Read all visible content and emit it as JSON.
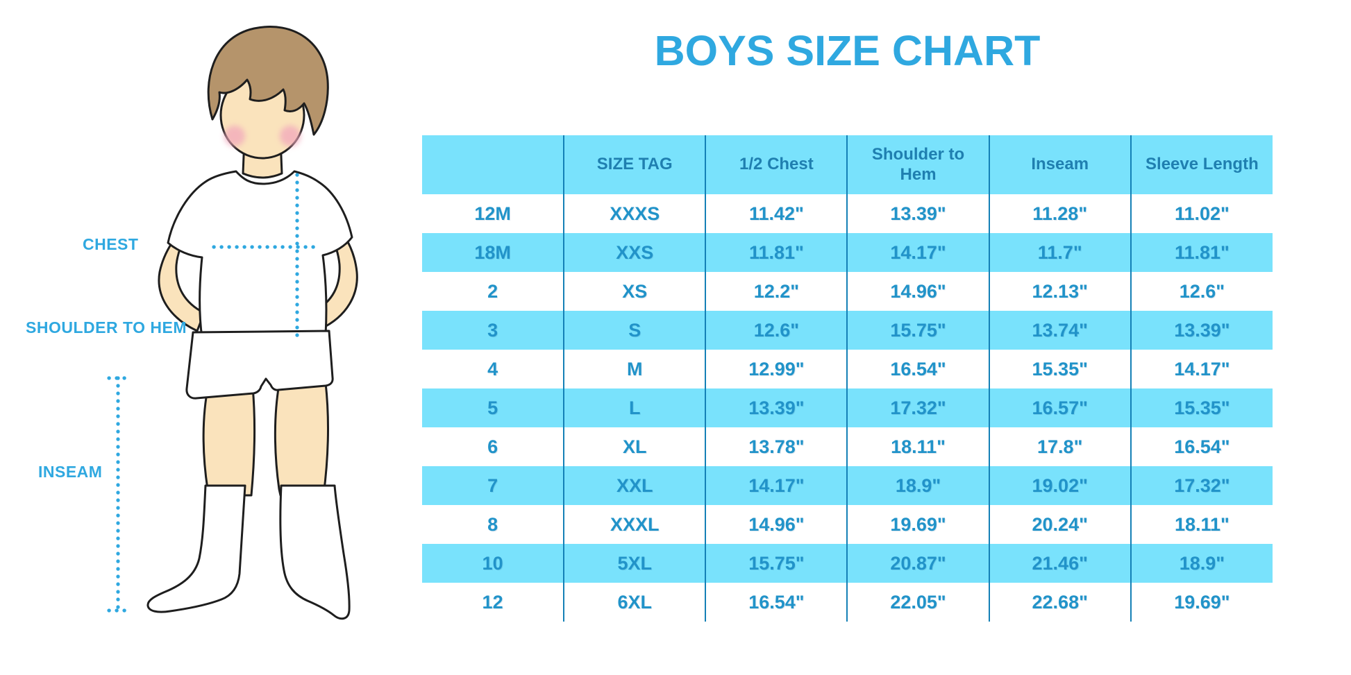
{
  "title": "BOYS SIZE CHART",
  "figure": {
    "chest_label": "CHEST",
    "shoulder_to_hem_label": "SHOULDER TO HEM",
    "inseam_label": "INSEAM"
  },
  "colors": {
    "accent": "#2FA8E0",
    "stripe": "#79E2FC",
    "divider": "#1480B6",
    "header_text": "#1F7FB0",
    "body_text": "#2193C9",
    "skin": "#FAE3BC",
    "hair": "#B5946B",
    "cheek": "#F2A8BC",
    "outline": "#1E1E1E"
  },
  "chart_data": {
    "type": "table",
    "title": "BOYS SIZE CHART",
    "columns": [
      "",
      "SIZE TAG",
      "1/2 Chest",
      "Shoulder to Hem",
      "Inseam",
      "Sleeve Length"
    ],
    "rows": [
      [
        "12M",
        "XXXS",
        "11.42\"",
        "13.39\"",
        "11.28\"",
        "11.02\""
      ],
      [
        "18M",
        "XXS",
        "11.81\"",
        "14.17\"",
        "11.7\"",
        "11.81\""
      ],
      [
        "2",
        "XS",
        "12.2\"",
        "14.96\"",
        "12.13\"",
        "12.6\""
      ],
      [
        "3",
        "S",
        "12.6\"",
        "15.75\"",
        "13.74\"",
        "13.39\""
      ],
      [
        "4",
        "M",
        "12.99\"",
        "16.54\"",
        "15.35\"",
        "14.17\""
      ],
      [
        "5",
        "L",
        "13.39\"",
        "17.32\"",
        "16.57\"",
        "15.35\""
      ],
      [
        "6",
        "XL",
        "13.78\"",
        "18.11\"",
        "17.8\"",
        "16.54\""
      ],
      [
        "7",
        "XXL",
        "14.17\"",
        "18.9\"",
        "19.02\"",
        "17.32\""
      ],
      [
        "8",
        "XXXL",
        "14.96\"",
        "19.69\"",
        "20.24\"",
        "18.11\""
      ],
      [
        "10",
        "5XL",
        "15.75\"",
        "20.87\"",
        "21.46\"",
        "18.9\""
      ],
      [
        "12",
        "6XL",
        "16.54\"",
        "22.05\"",
        "22.68\"",
        "19.69\""
      ]
    ]
  }
}
